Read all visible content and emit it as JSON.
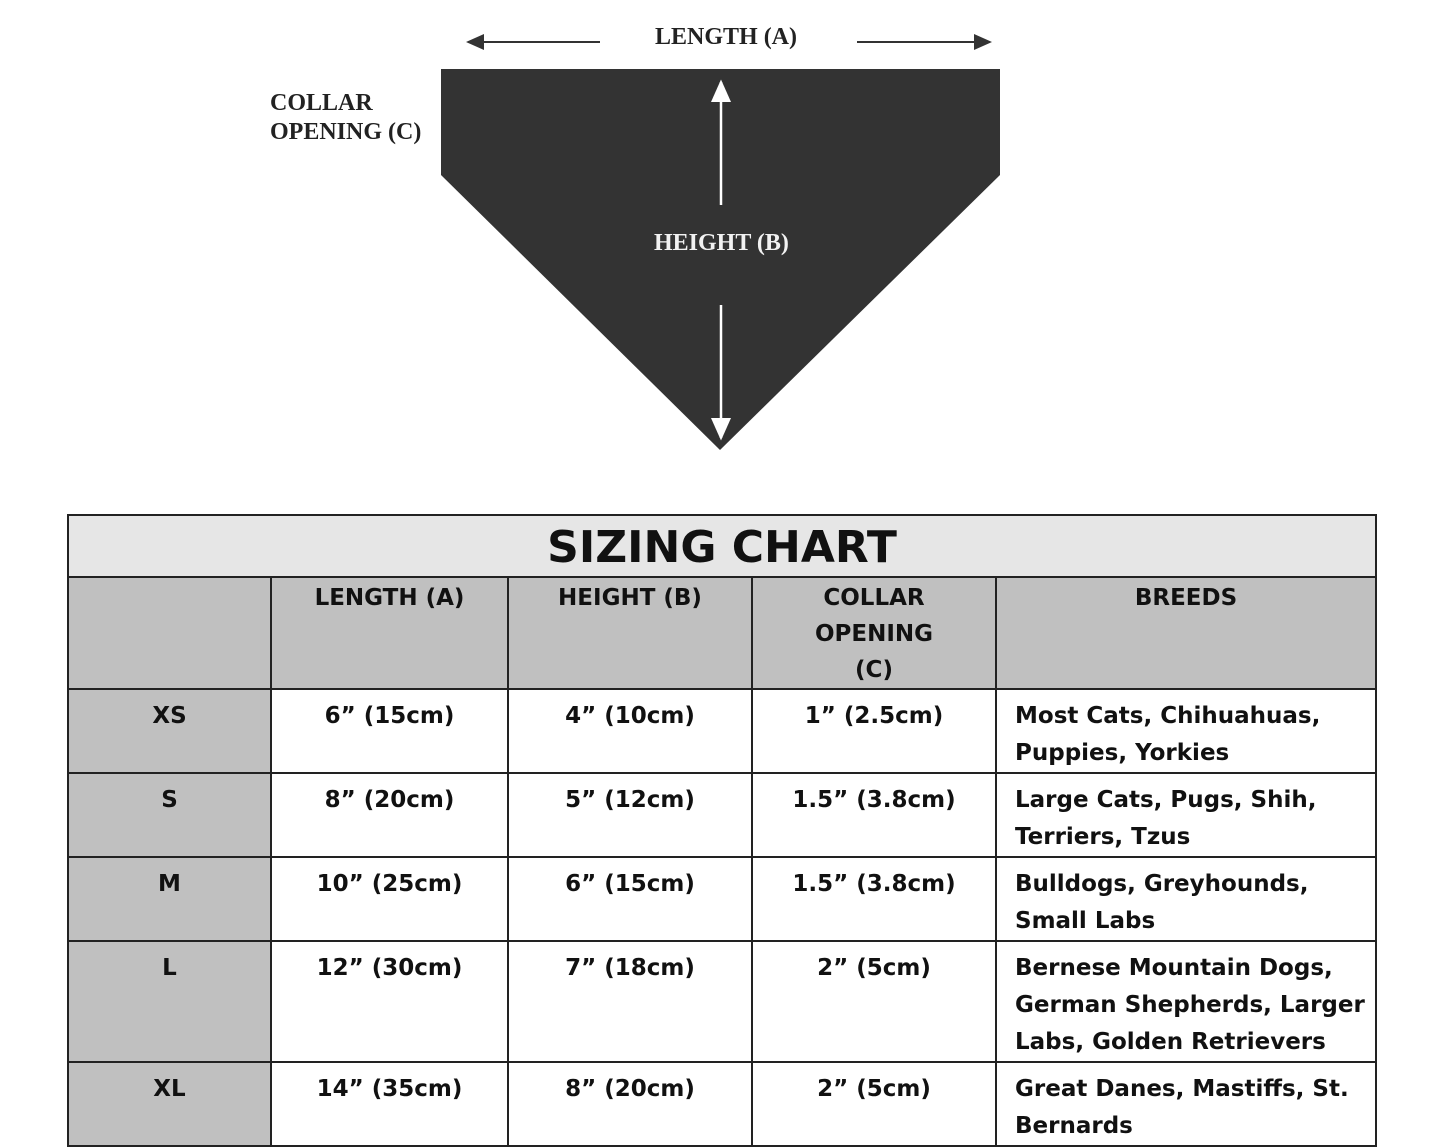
{
  "diagram": {
    "length_label": "LENGTH (A)",
    "height_label": "HEIGHT (B)",
    "collar_label_line1": "COLLAR",
    "collar_label_line2": "OPENING (C)",
    "bandana_color": "#333333"
  },
  "table": {
    "title": "SIZING CHART",
    "headers": [
      "",
      "LENGTH (A)",
      "HEIGHT (B)",
      "COLLAR OPENING (C)",
      "BREEDS"
    ],
    "rows": [
      {
        "size": "XS",
        "length": "6” (15cm)",
        "height": "4” (10cm)",
        "collar": "1” (2.5cm)",
        "breeds": "Most Cats, Chihuahuas, Puppies, Yorkies"
      },
      {
        "size": "S",
        "length": "8” (20cm)",
        "height": "5” (12cm)",
        "collar": "1.5” (3.8cm)",
        "breeds": "Large Cats, Pugs, Shih, Terriers, Tzus"
      },
      {
        "size": "M",
        "length": "10” (25cm)",
        "height": "6” (15cm)",
        "collar": "1.5” (3.8cm)",
        "breeds": "Bulldogs, Greyhounds, Small Labs"
      },
      {
        "size": "L",
        "length": "12” (30cm)",
        "height": "7” (18cm)",
        "collar": "2” (5cm)",
        "breeds": "Bernese Mountain Dogs, German Shepherds, Larger Labs, Golden Retrievers"
      },
      {
        "size": "XL",
        "length": "14” (35cm)",
        "height": "8” (20cm)",
        "collar": "2” (5cm)",
        "breeds": "Great Danes, Mastiffs, St. Bernards"
      }
    ]
  }
}
